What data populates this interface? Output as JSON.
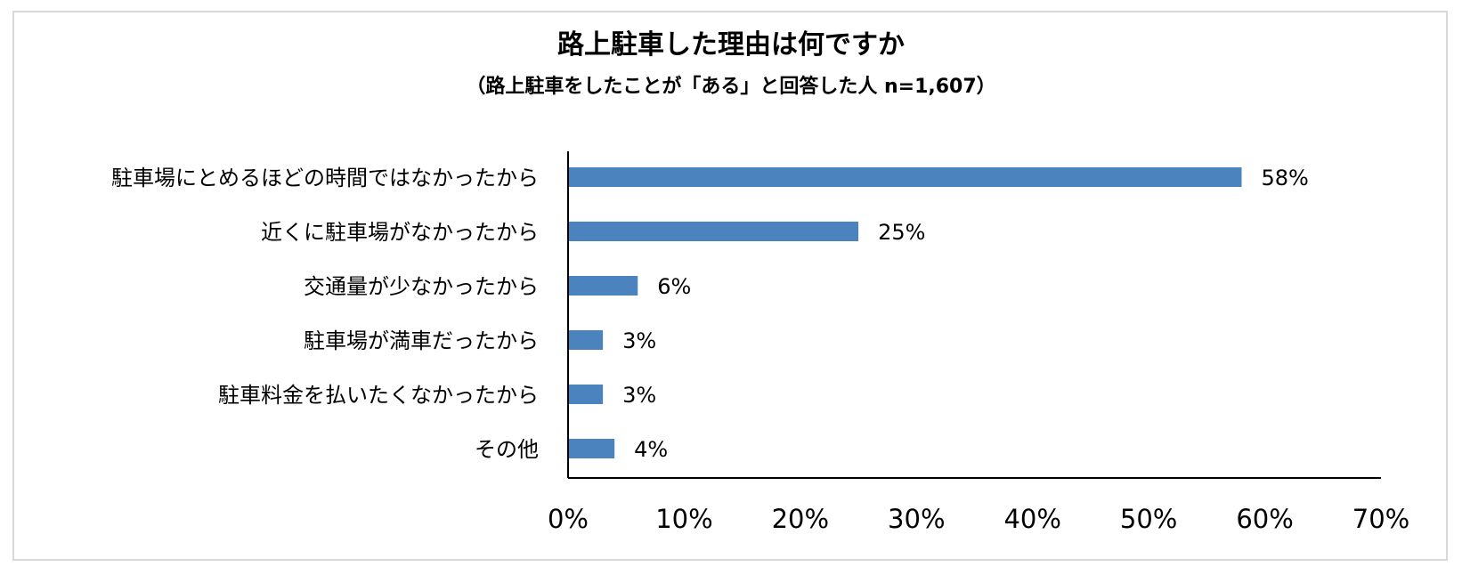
{
  "chart_data": {
    "type": "bar",
    "orientation": "horizontal",
    "title": "路上駐車した理由は何ですか",
    "subtitle": "（路上駐車をしたことが「ある」と回答した人 n=1,607）",
    "categories": [
      "駐車場にとめるほどの時間ではなかったから",
      "近くに駐車場がなかったから",
      "交通量が少なかったから",
      "駐車場が満車だったから",
      "駐車料金を払いたくなかったから",
      "その他"
    ],
    "values": [
      58,
      25,
      6,
      3,
      3,
      4
    ],
    "value_labels": [
      "58%",
      "25%",
      "6%",
      "3%",
      "3%",
      "4%"
    ],
    "xlim": [
      0,
      70
    ],
    "x_ticks": [
      0,
      10,
      20,
      30,
      40,
      50,
      60,
      70
    ],
    "x_tick_labels": [
      "0%",
      "10%",
      "20%",
      "30%",
      "40%",
      "50%",
      "60%",
      "70%"
    ],
    "xlabel": "",
    "ylabel": "",
    "grid": false,
    "legend": "none",
    "bar_color": "#4a83be",
    "axis_color": "#000000",
    "border_color": "#d9d9d9"
  }
}
